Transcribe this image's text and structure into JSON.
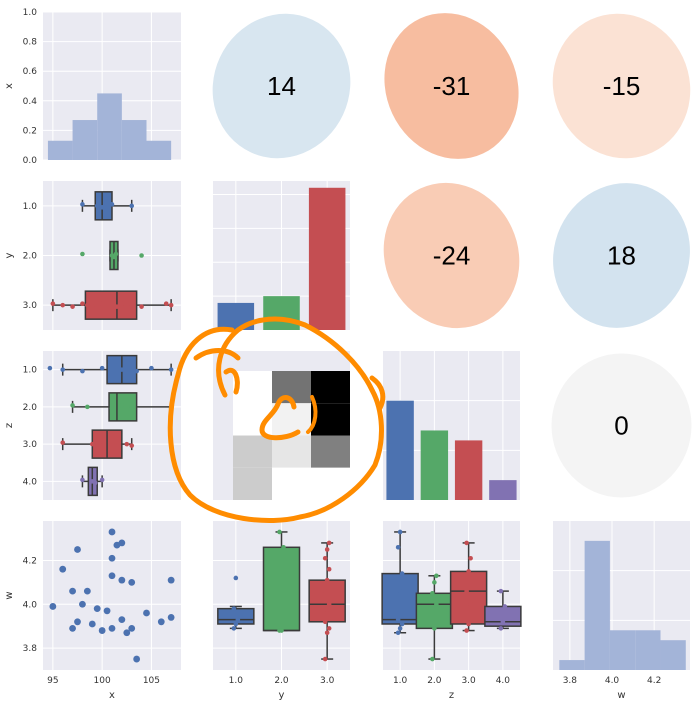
{
  "chart_data": {
    "type": "pairgrid",
    "variables": [
      "x",
      "y",
      "z",
      "w"
    ],
    "axis_labels": {
      "x": "x",
      "y": "y",
      "z": "z",
      "w": "w"
    },
    "colors": {
      "blue": "#4c72b0",
      "green": "#55a868",
      "red": "#c44e52",
      "purple": "#8172b2",
      "hist": "#a3b4d8",
      "panel_bg": "#eaeaf2",
      "annotation": "#ff8c00"
    },
    "diag_x_hist": {
      "type": "bar",
      "bin_edges": [
        94.5,
        97.0,
        99.5,
        102.0,
        104.5,
        107.0
      ],
      "heights": [
        0.13,
        0.27,
        0.45,
        0.27,
        0.13
      ],
      "ylim": [
        0,
        1
      ],
      "yticks": [
        "0.0",
        "0.2",
        "0.4",
        "0.6",
        "0.8",
        "1.0"
      ]
    },
    "diag_y_bar": {
      "type": "bar",
      "categories": [
        "1.0",
        "2.0",
        "3.0"
      ],
      "values": [
        4,
        5,
        21
      ],
      "ylim": [
        0,
        22
      ]
    },
    "diag_z_bar": {
      "type": "bar",
      "categories": [
        "1.0",
        "2.0",
        "3.0",
        "4.0"
      ],
      "values": [
        10,
        7,
        6,
        2
      ],
      "ylim": [
        0,
        15
      ]
    },
    "diag_w_hist": {
      "type": "bar",
      "bin_edges": [
        3.75,
        3.87,
        3.99,
        4.11,
        4.23,
        4.35
      ],
      "heights": [
        1,
        13,
        4,
        4,
        3
      ],
      "ylim": [
        0,
        15
      ],
      "xticks": [
        "3.8",
        "4.0",
        "4.2"
      ]
    },
    "correlations": [
      {
        "pair": "x-y",
        "value": "14",
        "color": "#d8e6f0",
        "angle": 60
      },
      {
        "pair": "x-z",
        "value": "-31",
        "color": "#f7bda0",
        "angle": -55
      },
      {
        "pair": "x-w",
        "value": "-15",
        "color": "#fbe2d4",
        "angle": -50
      },
      {
        "pair": "y-z",
        "value": "-24",
        "color": "#f9ccb5",
        "angle": -55
      },
      {
        "pair": "y-w",
        "value": "18",
        "color": "#d3e3ef",
        "angle": 55
      },
      {
        "pair": "z-w",
        "value": "0",
        "color": "#f4f4f4",
        "angle": 0
      }
    ],
    "box_y_vs_x": {
      "type": "box",
      "orient": "horizontal",
      "categories": [
        "1.0",
        "2.0",
        "3.0"
      ],
      "xlim": [
        94,
        108
      ],
      "boxes": [
        {
          "q1": 99.3,
          "median": 100.0,
          "q3": 101.0,
          "whislo": 98.0,
          "whishi": 103.0,
          "points": [
            98.0,
            99.5,
            100.0,
            101.0,
            103.0
          ]
        },
        {
          "q1": 100.8,
          "median": 101.2,
          "q3": 101.6,
          "whislo": 100.8,
          "whishi": 101.6,
          "points": [
            98.0,
            101.0,
            101.2,
            101.4,
            104.0
          ]
        },
        {
          "q1": 98.3,
          "median": 101.5,
          "q3": 103.5,
          "whislo": 95.0,
          "whishi": 107.0,
          "points": [
            95.0,
            96.0,
            97.0,
            98.0,
            98.5,
            99.0,
            100.0,
            101.0,
            101.5,
            102.0,
            103.0,
            104.0,
            106.5,
            107.0
          ]
        }
      ]
    },
    "box_z_vs_x": {
      "type": "box",
      "orient": "horizontal",
      "categories": [
        "1.0",
        "2.0",
        "3.0",
        "4.0"
      ],
      "xlim": [
        94,
        108
      ],
      "boxes": [
        {
          "q1": 100.5,
          "median": 102.0,
          "q3": 103.5,
          "whislo": 96.0,
          "whishi": 107.0,
          "points": [
            94.7,
            96.0,
            98.0,
            100.0,
            102.0,
            103.5,
            105.0,
            107.0
          ]
        },
        {
          "q1": 100.7,
          "median": 101.5,
          "q3": 103.5,
          "whislo": 97.0,
          "whishi": 107.0,
          "points": [
            97.0,
            98.5,
            101.0,
            102.0,
            103.0,
            107.0
          ]
        },
        {
          "q1": 99.0,
          "median": 100.5,
          "q3": 102.0,
          "whislo": 96.0,
          "whishi": 103.0,
          "points": [
            96.0,
            99.0,
            100.0,
            101.0,
            102.5,
            103.0
          ]
        },
        {
          "q1": 98.6,
          "median": 99.0,
          "q3": 99.5,
          "whislo": 98.0,
          "whishi": 100.0,
          "points": [
            98.0,
            99.0,
            99.3,
            100.0
          ]
        }
      ]
    },
    "heatmap_z_vs_y": {
      "type": "heatmap",
      "rows": 4,
      "cols": 3,
      "values": [
        [
          0.0,
          0.55,
          1.0
        ],
        [
          0.0,
          0.05,
          1.0
        ],
        [
          0.2,
          0.1,
          0.5
        ],
        [
          0.2,
          0.0,
          0.0
        ]
      ]
    },
    "scatter_w_vs_x": {
      "type": "scatter",
      "xlim": [
        94,
        108
      ],
      "ylim": [
        3.7,
        4.38
      ],
      "xticks": [
        "95",
        "100",
        "105"
      ],
      "yticks": [
        "3.8",
        "4.0",
        "4.2"
      ],
      "points": [
        [
          96.0,
          4.16
        ],
        [
          97.5,
          4.25
        ],
        [
          101.0,
          4.33
        ],
        [
          101.5,
          4.27
        ],
        [
          102.0,
          4.28
        ],
        [
          101.0,
          4.21
        ],
        [
          97.0,
          4.06
        ],
        [
          98.5,
          4.06
        ],
        [
          101.0,
          4.13
        ],
        [
          103.0,
          4.1
        ],
        [
          102.0,
          4.11
        ],
        [
          107.0,
          4.11
        ],
        [
          95.0,
          3.99
        ],
        [
          98.0,
          4.0
        ],
        [
          99.5,
          3.98
        ],
        [
          100.5,
          3.97
        ],
        [
          97.5,
          3.92
        ],
        [
          99.0,
          3.91
        ],
        [
          101.0,
          3.89
        ],
        [
          102.0,
          3.93
        ],
        [
          103.0,
          3.89
        ],
        [
          104.5,
          3.96
        ],
        [
          107.0,
          3.94
        ],
        [
          106.0,
          3.92
        ],
        [
          97.0,
          3.89
        ],
        [
          100.0,
          3.88
        ],
        [
          102.5,
          3.87
        ],
        [
          103.5,
          3.75
        ]
      ]
    },
    "box_w_vs_y": {
      "type": "box",
      "orient": "vertical",
      "categories": [
        "1.0",
        "2.0",
        "3.0"
      ],
      "ylim": [
        3.7,
        4.38
      ],
      "boxes": [
        {
          "q1": 3.91,
          "median": 3.93,
          "q3": 3.98,
          "whislo": 3.89,
          "whishi": 3.99,
          "points": [
            3.89,
            3.91,
            3.93,
            3.98,
            4.12
          ]
        },
        {
          "q1": 3.88,
          "median": 3.88,
          "q3": 4.26,
          "whislo": 3.88,
          "whishi": 4.33,
          "points": [
            3.88,
            3.88,
            4.26,
            4.33
          ]
        },
        {
          "q1": 3.92,
          "median": 4.0,
          "q3": 4.11,
          "whislo": 3.75,
          "whishi": 4.28,
          "points": [
            3.75,
            3.87,
            3.89,
            3.92,
            3.96,
            4.0,
            4.06,
            4.11,
            4.16,
            4.21,
            4.25,
            4.28
          ]
        }
      ]
    },
    "box_w_vs_z": {
      "type": "box",
      "orient": "vertical",
      "categories": [
        "1.0",
        "2.0",
        "3.0",
        "4.0"
      ],
      "ylim": [
        3.7,
        4.38
      ],
      "boxes": [
        {
          "q1": 3.91,
          "median": 3.93,
          "q3": 4.14,
          "whislo": 3.87,
          "whishi": 4.33,
          "points": [
            3.87,
            3.89,
            3.91,
            3.93,
            4.06,
            4.14,
            4.26,
            4.33
          ]
        },
        {
          "q1": 3.89,
          "median": 4.0,
          "q3": 4.05,
          "whislo": 3.75,
          "whishi": 4.13,
          "points": [
            3.75,
            3.89,
            4.0,
            4.05,
            4.1,
            4.13
          ]
        },
        {
          "q1": 3.91,
          "median": 4.06,
          "q3": 4.15,
          "whislo": 3.88,
          "whishi": 4.28,
          "points": [
            3.88,
            3.91,
            4.0,
            4.06,
            4.15,
            4.21,
            4.28
          ]
        },
        {
          "q1": 3.9,
          "median": 3.92,
          "q3": 3.99,
          "whislo": 3.89,
          "whishi": 4.06,
          "points": [
            3.89,
            3.92,
            3.99,
            4.06
          ]
        }
      ]
    }
  }
}
